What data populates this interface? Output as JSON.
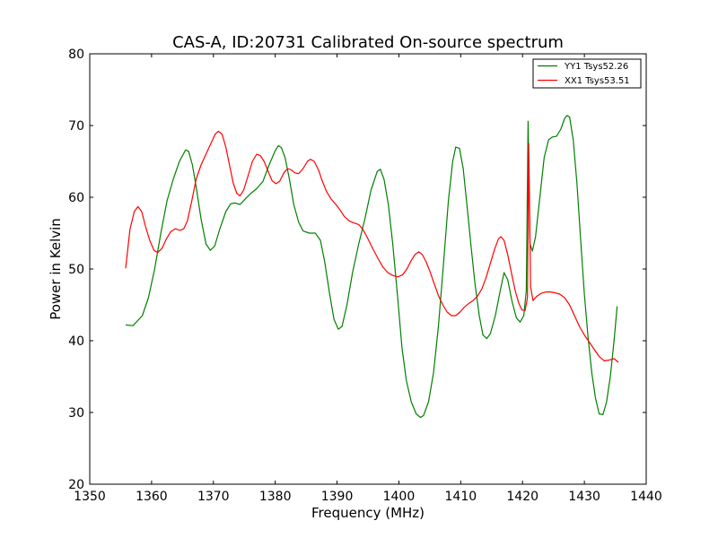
{
  "chart_data": {
    "type": "line",
    "title": "CAS-A, ID:20731 Calibrated On-source spectrum",
    "xlabel": "Frequency (MHz)",
    "ylabel": "Power in Kelvin",
    "xlim": [
      1350,
      1440
    ],
    "ylim": [
      20,
      80
    ],
    "xticks": [
      1350,
      1360,
      1370,
      1380,
      1390,
      1400,
      1410,
      1420,
      1430,
      1440
    ],
    "yticks": [
      20,
      30,
      40,
      50,
      60,
      70,
      80
    ],
    "grid": false,
    "legend_position": "top-right",
    "series": [
      {
        "name": "YY1 Tsys52.26",
        "color": "#008000",
        "points": [
          [
            1355.8,
            42.2
          ],
          [
            1357.0,
            42.1
          ],
          [
            1358.5,
            43.5
          ],
          [
            1359.5,
            46.0
          ],
          [
            1360.5,
            50.0
          ],
          [
            1361.5,
            55.0
          ],
          [
            1362.5,
            59.5
          ],
          [
            1363.5,
            62.5
          ],
          [
            1364.5,
            65.0
          ],
          [
            1365.5,
            66.6
          ],
          [
            1366.0,
            66.4
          ],
          [
            1366.6,
            64.5
          ],
          [
            1367.2,
            61.5
          ],
          [
            1368.0,
            57.0
          ],
          [
            1368.8,
            53.5
          ],
          [
            1369.5,
            52.6
          ],
          [
            1370.2,
            53.2
          ],
          [
            1371.0,
            55.5
          ],
          [
            1372.0,
            58.0
          ],
          [
            1372.8,
            59.1
          ],
          [
            1373.5,
            59.2
          ],
          [
            1374.3,
            59.0
          ],
          [
            1375.2,
            59.8
          ],
          [
            1376.0,
            60.5
          ],
          [
            1377.0,
            61.2
          ],
          [
            1378.0,
            62.2
          ],
          [
            1379.0,
            64.5
          ],
          [
            1380.0,
            66.5
          ],
          [
            1380.5,
            67.2
          ],
          [
            1381.0,
            66.9
          ],
          [
            1381.6,
            65.5
          ],
          [
            1382.3,
            62.5
          ],
          [
            1383.0,
            59.0
          ],
          [
            1383.8,
            56.5
          ],
          [
            1384.5,
            55.3
          ],
          [
            1385.5,
            55.0
          ],
          [
            1386.5,
            55.0
          ],
          [
            1387.3,
            54.0
          ],
          [
            1388.0,
            51.0
          ],
          [
            1388.8,
            46.5
          ],
          [
            1389.5,
            43.0
          ],
          [
            1390.2,
            41.6
          ],
          [
            1390.8,
            42.0
          ],
          [
            1391.6,
            45.0
          ],
          [
            1392.5,
            49.5
          ],
          [
            1393.5,
            53.5
          ],
          [
            1394.5,
            57.0
          ],
          [
            1395.5,
            61.0
          ],
          [
            1396.5,
            63.6
          ],
          [
            1397.0,
            63.9
          ],
          [
            1397.6,
            62.5
          ],
          [
            1398.3,
            59.0
          ],
          [
            1399.0,
            53.5
          ],
          [
            1399.8,
            46.0
          ],
          [
            1400.5,
            39.0
          ],
          [
            1401.2,
            34.5
          ],
          [
            1402.0,
            31.5
          ],
          [
            1402.8,
            29.8
          ],
          [
            1403.5,
            29.3
          ],
          [
            1404.0,
            29.6
          ],
          [
            1404.8,
            31.5
          ],
          [
            1405.6,
            35.5
          ],
          [
            1406.4,
            42.0
          ],
          [
            1407.2,
            50.5
          ],
          [
            1408.0,
            59.5
          ],
          [
            1408.7,
            65.0
          ],
          [
            1409.2,
            67.0
          ],
          [
            1409.8,
            66.8
          ],
          [
            1410.4,
            64.0
          ],
          [
            1411.0,
            59.0
          ],
          [
            1411.7,
            53.0
          ],
          [
            1412.3,
            48.0
          ],
          [
            1413.0,
            43.5
          ],
          [
            1413.6,
            40.8
          ],
          [
            1414.2,
            40.3
          ],
          [
            1414.8,
            41.0
          ],
          [
            1415.6,
            43.5
          ],
          [
            1416.4,
            47.0
          ],
          [
            1417.0,
            49.5
          ],
          [
            1417.6,
            48.5
          ],
          [
            1418.3,
            45.5
          ],
          [
            1419.0,
            43.2
          ],
          [
            1419.6,
            42.6
          ],
          [
            1420.2,
            43.5
          ],
          [
            1420.6,
            47.0
          ],
          [
            1420.9,
            70.6
          ],
          [
            1421.2,
            53.5
          ],
          [
            1421.6,
            52.5
          ],
          [
            1422.1,
            54.5
          ],
          [
            1422.8,
            60.0
          ],
          [
            1423.5,
            65.5
          ],
          [
            1424.2,
            68.0
          ],
          [
            1424.8,
            68.4
          ],
          [
            1425.5,
            68.5
          ],
          [
            1426.2,
            69.5
          ],
          [
            1426.8,
            71.0
          ],
          [
            1427.2,
            71.4
          ],
          [
            1427.6,
            71.2
          ],
          [
            1428.2,
            68.0
          ],
          [
            1428.8,
            62.0
          ],
          [
            1429.4,
            54.0
          ],
          [
            1430.0,
            46.5
          ],
          [
            1430.6,
            40.5
          ],
          [
            1431.2,
            35.5
          ],
          [
            1431.8,
            32.0
          ],
          [
            1432.4,
            29.8
          ],
          [
            1433.0,
            29.7
          ],
          [
            1433.6,
            31.5
          ],
          [
            1434.2,
            35.0
          ],
          [
            1434.8,
            40.0
          ],
          [
            1435.3,
            44.8
          ]
        ]
      },
      {
        "name": "XX1 Tsys53.51",
        "color": "#ff0000",
        "points": [
          [
            1355.8,
            50.1
          ],
          [
            1356.5,
            55.5
          ],
          [
            1357.2,
            58.0
          ],
          [
            1357.8,
            58.7
          ],
          [
            1358.4,
            58.0
          ],
          [
            1359.0,
            56.0
          ],
          [
            1359.7,
            54.0
          ],
          [
            1360.4,
            52.6
          ],
          [
            1361.0,
            52.3
          ],
          [
            1361.7,
            52.9
          ],
          [
            1362.4,
            54.2
          ],
          [
            1363.1,
            55.2
          ],
          [
            1363.8,
            55.6
          ],
          [
            1364.6,
            55.4
          ],
          [
            1365.2,
            55.6
          ],
          [
            1365.8,
            56.7
          ],
          [
            1366.5,
            59.5
          ],
          [
            1367.2,
            62.5
          ],
          [
            1368.0,
            64.5
          ],
          [
            1368.8,
            66.0
          ],
          [
            1369.6,
            67.5
          ],
          [
            1370.3,
            68.8
          ],
          [
            1370.8,
            69.2
          ],
          [
            1371.4,
            68.8
          ],
          [
            1372.0,
            67.0
          ],
          [
            1372.6,
            64.5
          ],
          [
            1373.2,
            62.0
          ],
          [
            1373.8,
            60.5
          ],
          [
            1374.3,
            60.2
          ],
          [
            1374.9,
            61.0
          ],
          [
            1375.6,
            63.0
          ],
          [
            1376.3,
            65.0
          ],
          [
            1377.0,
            66.0
          ],
          [
            1377.6,
            65.8
          ],
          [
            1378.2,
            65.0
          ],
          [
            1378.9,
            63.5
          ],
          [
            1379.5,
            62.3
          ],
          [
            1380.1,
            61.9
          ],
          [
            1380.7,
            62.2
          ],
          [
            1381.4,
            63.4
          ],
          [
            1382.0,
            64.0
          ],
          [
            1382.6,
            63.8
          ],
          [
            1383.2,
            63.4
          ],
          [
            1383.8,
            63.3
          ],
          [
            1384.5,
            64.0
          ],
          [
            1385.2,
            65.0
          ],
          [
            1385.7,
            65.3
          ],
          [
            1386.3,
            65.0
          ],
          [
            1387.0,
            63.8
          ],
          [
            1387.6,
            62.3
          ],
          [
            1388.3,
            60.8
          ],
          [
            1389.0,
            59.8
          ],
          [
            1389.8,
            59.0
          ],
          [
            1390.5,
            58.2
          ],
          [
            1391.2,
            57.3
          ],
          [
            1392.0,
            56.7
          ],
          [
            1392.8,
            56.4
          ],
          [
            1393.5,
            56.2
          ],
          [
            1394.2,
            55.5
          ],
          [
            1395.0,
            54.2
          ],
          [
            1395.8,
            52.8
          ],
          [
            1396.6,
            51.5
          ],
          [
            1397.4,
            50.3
          ],
          [
            1398.2,
            49.5
          ],
          [
            1399.0,
            49.1
          ],
          [
            1399.8,
            48.9
          ],
          [
            1400.6,
            49.2
          ],
          [
            1401.3,
            50.0
          ],
          [
            1402.0,
            51.2
          ],
          [
            1402.6,
            52.0
          ],
          [
            1403.2,
            52.4
          ],
          [
            1403.8,
            52.0
          ],
          [
            1404.4,
            51.0
          ],
          [
            1405.0,
            49.7
          ],
          [
            1405.7,
            48.0
          ],
          [
            1406.4,
            46.3
          ],
          [
            1407.1,
            45.0
          ],
          [
            1407.8,
            44.0
          ],
          [
            1408.5,
            43.5
          ],
          [
            1409.2,
            43.5
          ],
          [
            1409.9,
            44.0
          ],
          [
            1410.6,
            44.7
          ],
          [
            1411.3,
            45.2
          ],
          [
            1412.0,
            45.6
          ],
          [
            1412.7,
            46.2
          ],
          [
            1413.4,
            47.2
          ],
          [
            1414.1,
            48.8
          ],
          [
            1414.8,
            50.8
          ],
          [
            1415.5,
            52.8
          ],
          [
            1416.1,
            54.2
          ],
          [
            1416.5,
            54.5
          ],
          [
            1417.0,
            54.0
          ],
          [
            1417.6,
            52.0
          ],
          [
            1418.2,
            49.5
          ],
          [
            1418.8,
            47.0
          ],
          [
            1419.4,
            45.2
          ],
          [
            1419.9,
            44.3
          ],
          [
            1420.4,
            44.2
          ],
          [
            1420.8,
            46.0
          ],
          [
            1421.0,
            67.5
          ],
          [
            1421.3,
            47.5
          ],
          [
            1421.7,
            45.6
          ],
          [
            1422.3,
            46.2
          ],
          [
            1423.0,
            46.6
          ],
          [
            1423.8,
            46.8
          ],
          [
            1424.5,
            46.8
          ],
          [
            1425.2,
            46.7
          ],
          [
            1426.0,
            46.5
          ],
          [
            1426.8,
            46.0
          ],
          [
            1427.6,
            45.0
          ],
          [
            1428.4,
            43.5
          ],
          [
            1429.2,
            42.0
          ],
          [
            1430.0,
            40.8
          ],
          [
            1430.8,
            39.8
          ],
          [
            1431.6,
            38.8
          ],
          [
            1432.4,
            37.8
          ],
          [
            1433.2,
            37.2
          ],
          [
            1434.0,
            37.3
          ],
          [
            1434.8,
            37.5
          ],
          [
            1435.5,
            37.0
          ]
        ]
      }
    ]
  }
}
